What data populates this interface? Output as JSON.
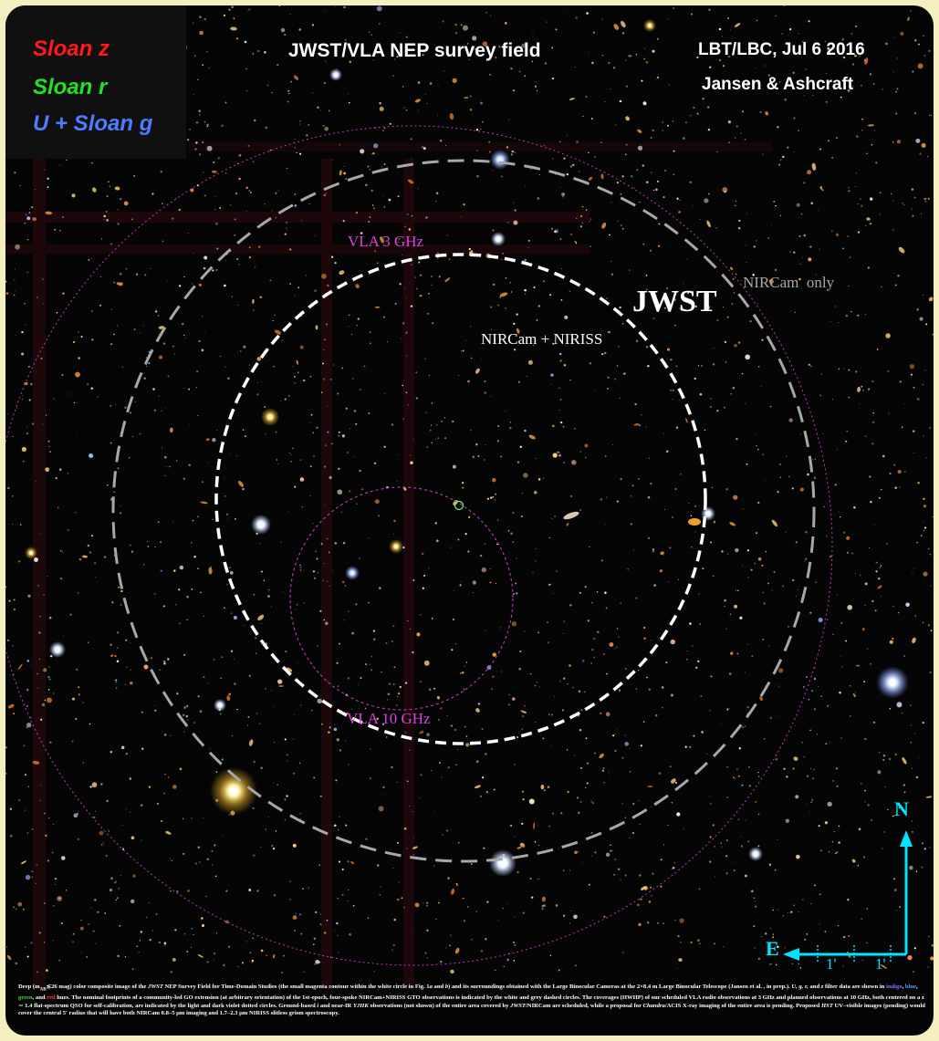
{
  "legend": {
    "filter_z": "Sloan z",
    "filter_r": "Sloan r",
    "filter_ug": "U + Sloan g",
    "colors": {
      "z": "#ff1a1a",
      "r": "#22e022",
      "ug": "#4a7dff"
    }
  },
  "header": {
    "title": "JWST/VLA NEP survey field",
    "instrument_date": "LBT/LBC, Jul 6 2016",
    "authors": "Jansen & Ashcraft"
  },
  "overlays": {
    "vla_3ghz": "VLA 3 GHz",
    "vla_10ghz": "VLA 10 GHz",
    "jwst": "JWST",
    "nircam_niriss": "NIRCam + NIRISS",
    "nircam_only": "NIRCam  only",
    "colors": {
      "vla": "#e040e0",
      "jwst": "#ffffff",
      "nircam_only": "#a8a8a8",
      "compass": "#00e5ff"
    }
  },
  "compass": {
    "north": "N",
    "east": "E",
    "scale_1": "1'",
    "scale_2": "1'"
  },
  "caption": {
    "part1": "Deep (m",
    "part1_sub": "AB",
    "part1b": "≲26 mag) color composite image of the ",
    "jwst_italic": "JWST",
    "part2": " NEP Survey Field for Time-Domain Studies (the small magenta contour within the white circle in Fig. 1",
    "fig_a": "a",
    "part3": " and ",
    "fig_b": "b",
    "part4": ") and its surroundings obtained with the Large Binocular Cameras at the 2×8.4 m Large Binocular Telescope (Jansen et al. , in prep.). ",
    "filters_italic": "U, g, r,",
    "part5": " and ",
    "z_italic": "z",
    "part6": " filter data are shown in ",
    "indigo": "indigo",
    "comma1": ", ",
    "blue": "blue",
    "comma2": ", ",
    "green": "green",
    "and_word": ", and ",
    "red": "red",
    "part7": " hues.  The nominal footprints of a community-led GO extension (at arbitrary orientation) of the 1st-epoch, four-spoke NIRCam+NIRISS GTO observations is indicated by the white and grey dashed circles. The coverages (HWHP) of our scheduled VLA radio observations at 3 GHz and planned observations at 10 GHz, both centered on a z ∼ 1.4 flat-spectrum QSO for self-calibration, are indicated by the light and dark violet dotted circles. Ground-based ",
    "i_italic": "i",
    "part8": " and near-IR ",
    "yjhk_italic": "YJHK",
    "part9": " observations (not shown) of the entire area covered by ",
    "jwst_italic2": "JWST",
    "part10": "/NIRCam are scheduled, while a proposal for ",
    "chandra_italic": "Chandra",
    "part11": "/ACIS X-ray imaging of the entire area is pending. Proposed ",
    "hst_italic": "HST",
    "part12": " UV–visible images (pending) would cover the central 5′ radius that will have both NIRCam 0.8–5 μm imaging and 1.7–2.3 μm NIRISS slitless grism spectroscopy."
  }
}
